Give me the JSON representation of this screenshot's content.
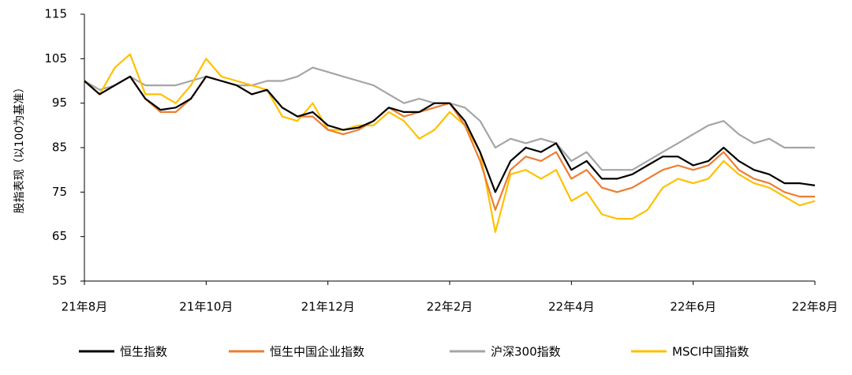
{
  "chart_data": {
    "type": "line",
    "y_label": "股指表现（以100为基准）",
    "categories": [
      "21年8月",
      null,
      null,
      null,
      null,
      null,
      null,
      null,
      "21年10月",
      null,
      null,
      null,
      null,
      null,
      null,
      null,
      "21年12月",
      null,
      null,
      null,
      null,
      null,
      null,
      null,
      "22年2月",
      null,
      null,
      null,
      null,
      null,
      null,
      null,
      "22年4月",
      null,
      null,
      null,
      null,
      null,
      null,
      null,
      "22年6月",
      null,
      null,
      null,
      null,
      null,
      null,
      null,
      "22年8月"
    ],
    "series": [
      {
        "name": "恒生指数",
        "color": "#000000",
        "values": [
          100,
          97,
          99,
          101,
          96,
          93.5,
          94,
          96,
          101,
          100,
          99,
          97,
          98,
          94,
          92,
          93,
          90,
          89,
          89.5,
          91,
          94,
          93,
          93,
          95,
          95,
          91,
          84,
          75,
          82,
          85,
          84,
          86,
          80,
          82,
          78,
          78,
          79,
          81,
          83,
          83,
          81,
          82,
          85,
          82,
          80,
          79,
          77,
          77,
          76.5
        ]
      },
      {
        "name": "恒生中国企业指数",
        "color": "#ed7d31",
        "values": [
          100,
          97,
          99,
          101,
          96,
          93,
          93,
          96,
          101,
          100,
          99,
          97,
          98,
          94,
          92,
          92,
          89,
          88,
          89,
          91,
          94,
          92,
          93,
          94,
          95,
          90,
          82,
          71,
          80,
          83,
          82,
          84,
          78,
          80,
          76,
          75,
          76,
          78,
          80,
          81,
          80,
          81,
          84,
          80,
          78,
          77,
          75,
          74,
          74
        ]
      },
      {
        "name": "沪深300指数",
        "color": "#a5a5a5",
        "values": [
          100,
          98,
          99,
          101,
          99,
          99,
          99,
          100,
          101,
          100,
          99,
          99,
          100,
          100,
          101,
          103,
          102,
          101,
          100,
          99,
          97,
          95,
          96,
          95,
          95,
          94,
          91,
          85,
          87,
          86,
          87,
          86,
          82,
          84,
          80,
          80,
          80,
          82,
          84,
          86,
          88,
          90,
          91,
          88,
          86,
          87,
          85,
          85,
          85
        ]
      },
      {
        "name": "MSCI中国指数",
        "color": "#ffc000",
        "values": [
          100,
          97,
          103,
          106,
          97,
          97,
          95,
          99,
          105,
          101,
          100,
          99,
          98,
          92,
          91,
          95,
          89,
          89,
          90,
          90,
          93,
          91,
          87,
          89,
          93,
          90,
          84,
          66,
          79,
          80,
          78,
          80,
          73,
          75,
          70,
          69,
          69,
          71,
          76,
          78,
          77,
          78,
          82,
          79,
          77,
          76,
          74,
          72,
          73
        ]
      }
    ],
    "ylim": [
      55,
      115
    ],
    "yticks": [
      55,
      65,
      75,
      85,
      95,
      105,
      115
    ],
    "grid": false
  }
}
